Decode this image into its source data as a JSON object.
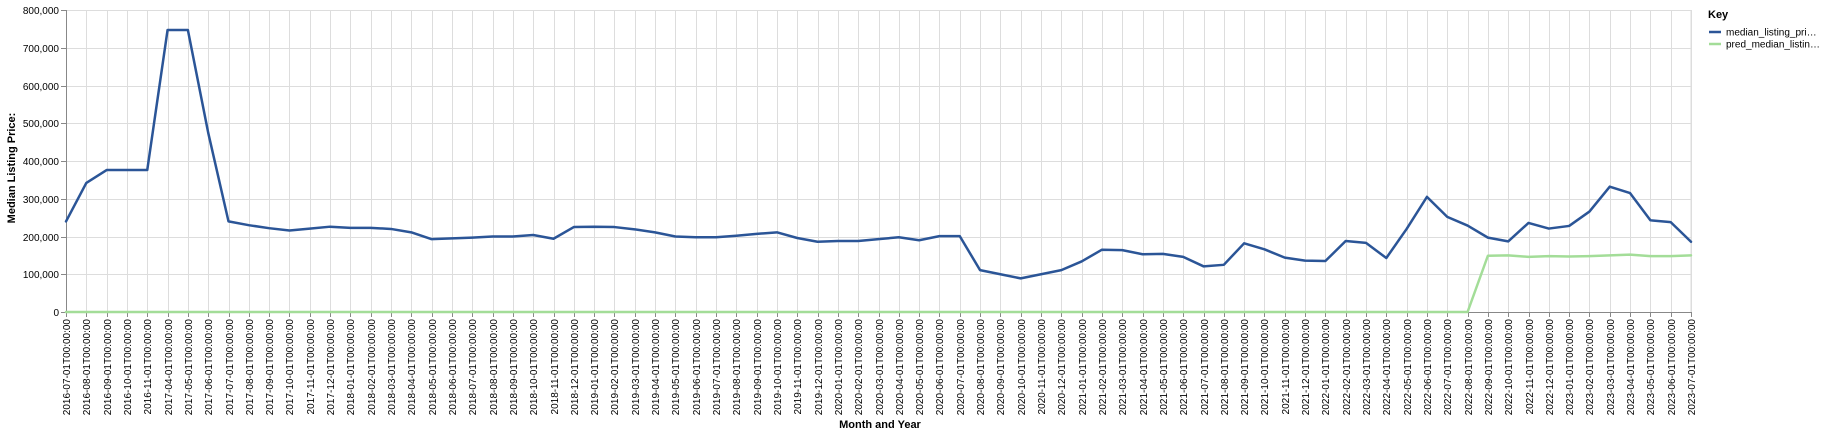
{
  "chart_data": {
    "type": "line",
    "title": "",
    "xlabel": "Month and Year",
    "ylabel": "Median Listing Price:",
    "ylim": [
      0,
      800000
    ],
    "y_ticks": [
      0,
      100000,
      200000,
      300000,
      400000,
      500000,
      600000,
      700000,
      800000
    ],
    "y_tick_labels": [
      "0",
      "100,000",
      "200,000",
      "300,000",
      "400,000",
      "500,000",
      "600,000",
      "700,000",
      "800,000"
    ],
    "grid": true,
    "legend": {
      "title": "Key",
      "position": "top-right"
    },
    "x": [
      "2016-07-01T00:00:00",
      "2016-08-01T00:00:00",
      "2016-09-01T00:00:00",
      "2016-10-01T00:00:00",
      "2016-11-01T00:00:00",
      "2017-04-01T00:00:00",
      "2017-05-01T00:00:00",
      "2017-06-01T00:00:00",
      "2017-07-01T00:00:00",
      "2017-08-01T00:00:00",
      "2017-09-01T00:00:00",
      "2017-10-01T00:00:00",
      "2017-11-01T00:00:00",
      "2017-12-01T00:00:00",
      "2018-01-01T00:00:00",
      "2018-02-01T00:00:00",
      "2018-03-01T00:00:00",
      "2018-04-01T00:00:00",
      "2018-05-01T00:00:00",
      "2018-06-01T00:00:00",
      "2018-07-01T00:00:00",
      "2018-08-01T00:00:00",
      "2018-09-01T00:00:00",
      "2018-10-01T00:00:00",
      "2018-11-01T00:00:00",
      "2018-12-01T00:00:00",
      "2019-01-01T00:00:00",
      "2019-02-01T00:00:00",
      "2019-03-01T00:00:00",
      "2019-04-01T00:00:00",
      "2019-05-01T00:00:00",
      "2019-06-01T00:00:00",
      "2019-07-01T00:00:00",
      "2019-08-01T00:00:00",
      "2019-09-01T00:00:00",
      "2019-10-01T00:00:00",
      "2019-11-01T00:00:00",
      "2019-12-01T00:00:00",
      "2020-01-01T00:00:00",
      "2020-02-01T00:00:00",
      "2020-03-01T00:00:00",
      "2020-04-01T00:00:00",
      "2020-05-01T00:00:00",
      "2020-06-01T00:00:00",
      "2020-07-01T00:00:00",
      "2020-08-01T00:00:00",
      "2020-09-01T00:00:00",
      "2020-10-01T00:00:00",
      "2020-11-01T00:00:00",
      "2020-12-01T00:00:00",
      "2021-01-01T00:00:00",
      "2021-02-01T00:00:00",
      "2021-03-01T00:00:00",
      "2021-04-01T00:00:00",
      "2021-05-01T00:00:00",
      "2021-06-01T00:00:00",
      "2021-07-01T00:00:00",
      "2021-08-01T00:00:00",
      "2021-09-01T00:00:00",
      "2021-10-01T00:00:00",
      "2021-11-01T00:00:00",
      "2021-12-01T00:00:00",
      "2022-01-01T00:00:00",
      "2022-02-01T00:00:00",
      "2022-03-01T00:00:00",
      "2022-04-01T00:00:00",
      "2022-05-01T00:00:00",
      "2022-06-01T00:00:00",
      "2022-07-01T00:00:00",
      "2022-08-01T00:00:00",
      "2022-09-01T00:00:00",
      "2022-10-01T00:00:00",
      "2022-11-01T00:00:00",
      "2022-12-01T00:00:00",
      "2023-01-01T00:00:00",
      "2023-02-01T00:00:00",
      "2023-03-01T00:00:00",
      "2023-04-01T00:00:00",
      "2023-05-01T00:00:00",
      "2023-06-01T00:00:00",
      "2023-07-01T00:00:00"
    ],
    "series": [
      {
        "name": "median_listing_pri…",
        "color": "#2b5597",
        "values": [
          240000,
          342000,
          376000,
          376000,
          376000,
          747000,
          747000,
          475000,
          240000,
          230000,
          222000,
          216000,
          221000,
          226000,
          223000,
          223000,
          220000,
          211000,
          193000,
          195000,
          197000,
          200000,
          200000,
          204000,
          194000,
          225000,
          226000,
          225000,
          219000,
          211000,
          200000,
          198000,
          198000,
          202000,
          207000,
          211000,
          196000,
          186000,
          188000,
          188000,
          193000,
          198000,
          190000,
          201000,
          201000,
          111000,
          100000,
          89000,
          100000,
          111000,
          134000,
          165000,
          164000,
          153000,
          154000,
          146000,
          121000,
          125000,
          182000,
          166000,
          144000,
          136000,
          135000,
          188000,
          183000,
          143000,
          220000,
          305000,
          252000,
          229000,
          197000,
          187000,
          236000,
          221000,
          228000,
          266000,
          332000,
          315000,
          243000,
          238000,
          186000
        ]
      },
      {
        "name": "pred_median_listin…",
        "color": "#a3dd98",
        "values": [
          0,
          0,
          0,
          0,
          0,
          0,
          0,
          0,
          0,
          0,
          0,
          0,
          0,
          0,
          0,
          0,
          0,
          0,
          0,
          0,
          0,
          0,
          0,
          0,
          0,
          0,
          0,
          0,
          0,
          0,
          0,
          0,
          0,
          0,
          0,
          0,
          0,
          0,
          0,
          0,
          0,
          0,
          0,
          0,
          0,
          0,
          0,
          0,
          0,
          0,
          0,
          0,
          0,
          0,
          0,
          0,
          0,
          0,
          0,
          0,
          0,
          0,
          0,
          0,
          0,
          0,
          0,
          0,
          0,
          0,
          149000,
          150000,
          146000,
          148000,
          147000,
          148000,
          150000,
          152000,
          148000,
          148000,
          150000
        ]
      }
    ]
  },
  "colors": {
    "grid": "#dddddd",
    "axis": "#888888",
    "text": "#000000"
  }
}
